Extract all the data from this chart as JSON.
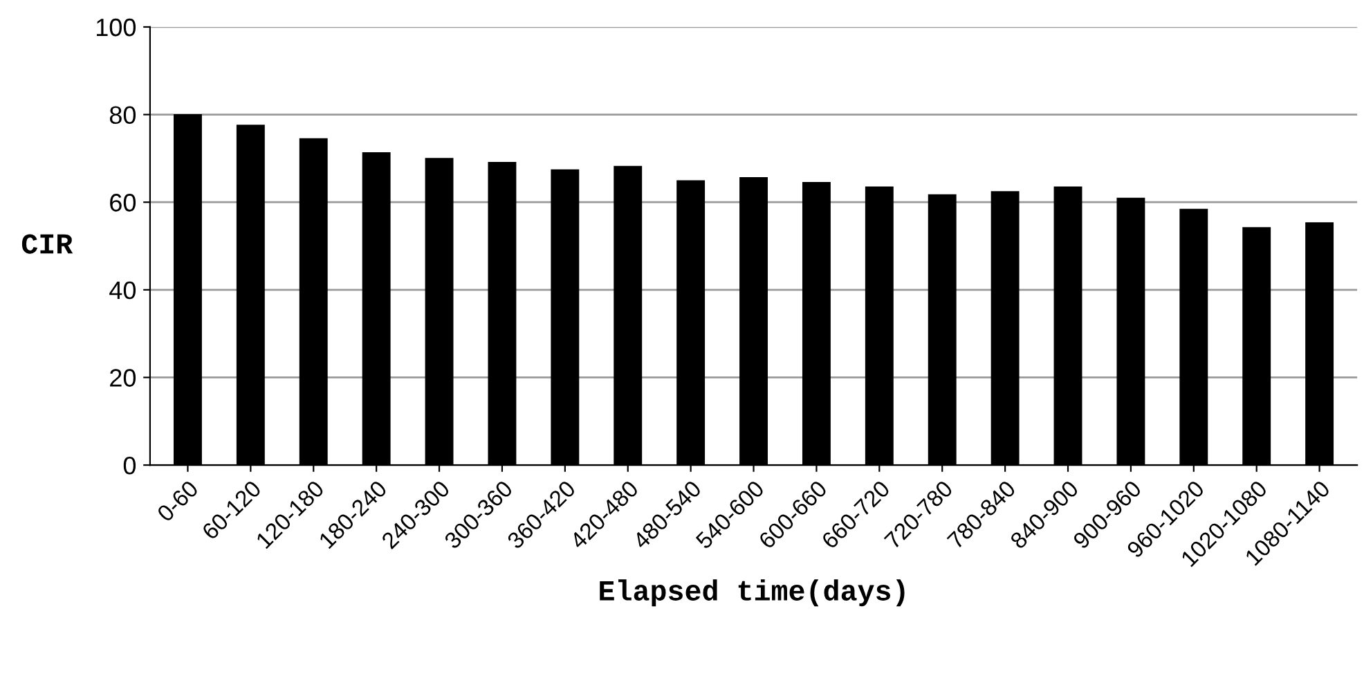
{
  "chart_data": {
    "type": "bar",
    "xlabel": "Elapsed time(days)",
    "ylabel": "CIR",
    "categories": [
      "0-60",
      "60-120",
      "120-180",
      "180-240",
      "240-300",
      "300-360",
      "360-420",
      "420-480",
      "480-540",
      "540-600",
      "600-660",
      "660-720",
      "720-780",
      "780-840",
      "840-900",
      "900-960",
      "960-1020",
      "1020-1080",
      "1080-1140"
    ],
    "values": [
      80.1,
      77.7,
      74.6,
      71.4,
      70.1,
      69.2,
      67.5,
      68.3,
      65.0,
      65.7,
      64.6,
      63.6,
      61.8,
      62.5,
      63.6,
      61.0,
      58.5,
      54.3,
      55.4
    ],
    "color": "#000000",
    "ylim": [
      0,
      100
    ],
    "yticks": [
      0,
      20,
      40,
      60,
      80,
      100
    ],
    "grid": "y"
  }
}
